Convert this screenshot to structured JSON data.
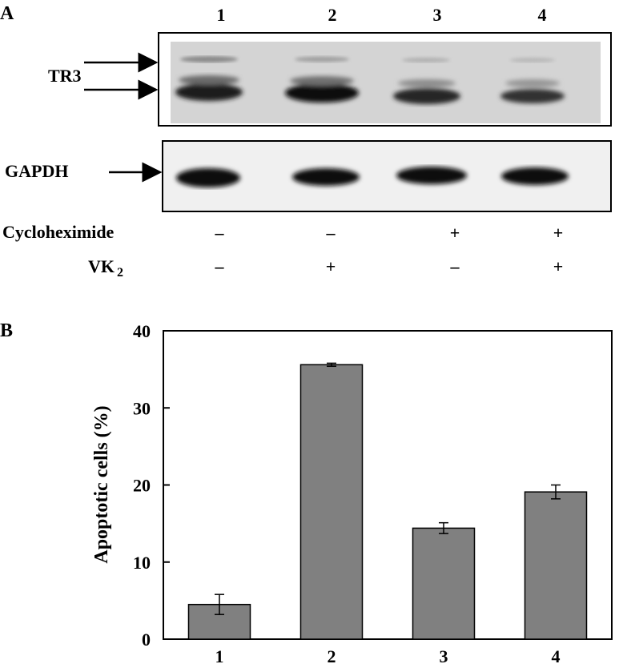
{
  "panel_a": {
    "letter": "A",
    "lane_numbers": [
      "1",
      "2",
      "3",
      "4"
    ],
    "blots": [
      {
        "label": "TR3"
      },
      {
        "label": "GAPDH"
      }
    ],
    "treatments": [
      {
        "label": "Cycloheximide",
        "values": [
          "–",
          "–",
          "+",
          "+"
        ]
      },
      {
        "label": "VK",
        "subscript": "2",
        "values": [
          "–",
          "+",
          "–",
          "+"
        ]
      }
    ]
  },
  "panel_b": {
    "letter": "B"
  },
  "chart_data": {
    "type": "bar",
    "categories": [
      "1",
      "2",
      "3",
      "4"
    ],
    "values": [
      4.5,
      35.6,
      14.4,
      19.1
    ],
    "errors": [
      1.3,
      0.2,
      0.7,
      0.9
    ],
    "ylabel": "Apoptotic cells (%)",
    "xlabel": "",
    "ylim": [
      0,
      40
    ],
    "yticks": [
      0,
      10,
      20,
      30,
      40
    ],
    "bar_color": "#808080",
    "grid": false
  }
}
